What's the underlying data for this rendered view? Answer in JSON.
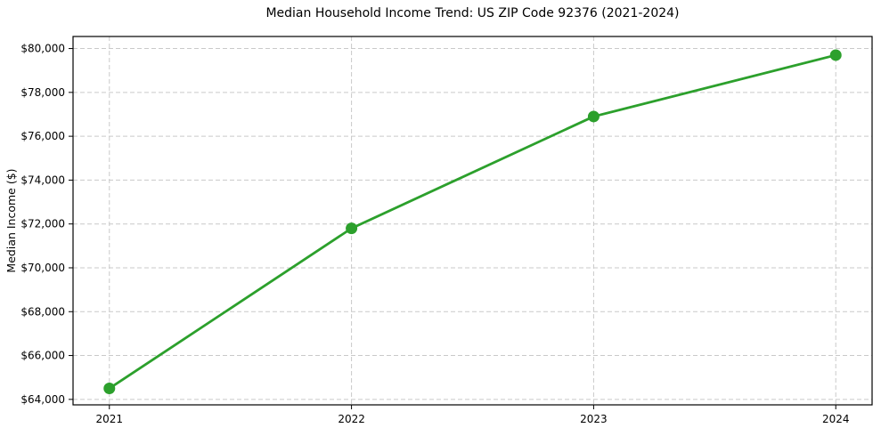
{
  "chart_data": {
    "type": "line",
    "title": "Median Household Income Trend: US ZIP Code 92376 (2021-2024)",
    "xlabel": "",
    "ylabel": "Median Income ($)",
    "x": [
      2021,
      2022,
      2023,
      2024
    ],
    "x_tick_labels": [
      "2021",
      "2022",
      "2023",
      "2024"
    ],
    "values": [
      64500,
      71800,
      76900,
      79700
    ],
    "y_ticks": [
      64000,
      66000,
      68000,
      70000,
      72000,
      74000,
      76000,
      78000,
      80000
    ],
    "y_tick_labels": [
      "$64,000",
      "$66,000",
      "$68,000",
      "$70,000",
      "$72,000",
      "$74,000",
      "$76,000",
      "$78,000",
      "$80,000"
    ],
    "xlim": [
      2020.85,
      2024.15
    ],
    "ylim": [
      63750,
      80550
    ],
    "grid": true,
    "grid_style": "dashed",
    "legend": "none",
    "marker": "circle",
    "colors": {
      "line": "#2ca02c",
      "marker": "#2ca02c",
      "grid": "#c9c9c9",
      "axis": "#000000",
      "text": "#000000",
      "background": "#ffffff"
    }
  }
}
